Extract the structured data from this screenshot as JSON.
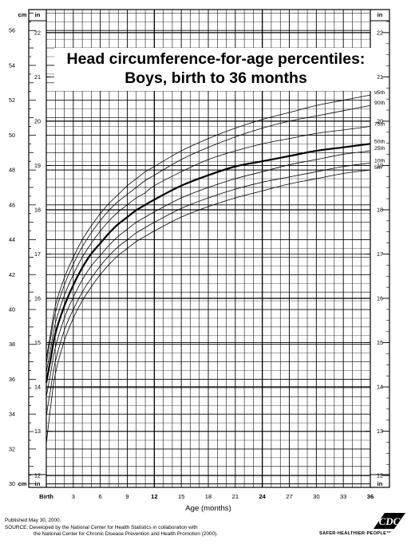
{
  "chart_data": {
    "type": "line",
    "title": "Head circumference-for-age percentiles:",
    "subtitle": "Boys, birth to 36 months",
    "xlabel": "Age (months)",
    "x_ticks": [
      "Birth",
      "3",
      "6",
      "9",
      "12",
      "15",
      "18",
      "21",
      "24",
      "27",
      "30",
      "33",
      "36"
    ],
    "x_bold_ticks": [
      "Birth",
      "12",
      "24",
      "36"
    ],
    "xlim": [
      0,
      36
    ],
    "cm_unit_label": "cm",
    "in_unit_label": "in",
    "cm_ticks": [
      "30",
      "32",
      "34",
      "36",
      "38",
      "40",
      "42",
      "44",
      "46",
      "48",
      "50",
      "52",
      "54",
      "56"
    ],
    "in_ticks": [
      "12",
      "13",
      "14",
      "15",
      "16",
      "17",
      "18",
      "19",
      "20",
      "21",
      "22"
    ],
    "ylim_cm": [
      29.8,
      57.2
    ],
    "grid": true,
    "x": [
      0,
      0.5,
      1,
      2,
      3,
      4,
      5,
      6,
      7,
      8,
      9,
      10,
      11,
      12,
      15,
      18,
      21,
      24,
      27,
      30,
      33,
      36
    ],
    "series": [
      {
        "name": "95th",
        "values": [
          37.2,
          38.7,
          40.2,
          41.8,
          43.0,
          44.0,
          44.8,
          45.5,
          46.1,
          46.6,
          47.1,
          47.5,
          47.9,
          48.2,
          49.1,
          49.8,
          50.4,
          50.9,
          51.3,
          51.7,
          52.0,
          52.3
        ]
      },
      {
        "name": "90th",
        "values": [
          36.9,
          38.4,
          39.8,
          41.4,
          42.6,
          43.6,
          44.4,
          45.1,
          45.7,
          46.2,
          46.6,
          47.0,
          47.4,
          47.7,
          48.6,
          49.3,
          49.9,
          50.4,
          50.8,
          51.1,
          51.4,
          51.7
        ]
      },
      {
        "name": "75th",
        "values": [
          36.4,
          37.8,
          39.2,
          40.8,
          42.0,
          43.0,
          43.8,
          44.5,
          45.1,
          45.6,
          46.0,
          46.4,
          46.7,
          47.1,
          47.9,
          48.6,
          49.1,
          49.5,
          49.8,
          50.1,
          50.3,
          50.5
        ]
      },
      {
        "name": "50th",
        "values": [
          35.8,
          37.2,
          38.6,
          40.2,
          41.4,
          42.4,
          43.2,
          43.8,
          44.4,
          44.9,
          45.3,
          45.7,
          46.0,
          46.3,
          47.1,
          47.7,
          48.2,
          48.5,
          48.8,
          49.1,
          49.3,
          49.5
        ]
      },
      {
        "name": "25th",
        "values": [
          35.0,
          36.4,
          37.8,
          39.5,
          40.7,
          41.7,
          42.5,
          43.1,
          43.7,
          44.2,
          44.6,
          45.0,
          45.3,
          45.6,
          46.4,
          47.0,
          47.5,
          47.9,
          48.3,
          48.6,
          48.9,
          49.1
        ]
      },
      {
        "name": "10th",
        "values": [
          33.9,
          35.5,
          37.0,
          38.8,
          40.0,
          41.0,
          41.8,
          42.5,
          43.1,
          43.6,
          44.0,
          44.4,
          44.7,
          45.0,
          45.8,
          46.4,
          46.9,
          47.3,
          47.6,
          47.9,
          48.2,
          48.4
        ]
      },
      {
        "name": "5th",
        "values": [
          32.3,
          34.5,
          36.3,
          38.2,
          39.5,
          40.5,
          41.3,
          42.0,
          42.6,
          43.1,
          43.5,
          43.9,
          44.2,
          44.5,
          45.3,
          45.9,
          46.4,
          46.8,
          47.2,
          47.5,
          47.8,
          48.0
        ]
      }
    ],
    "emphasized_series": "50th"
  },
  "footer": {
    "published": "Published May 30, 2000.",
    "source_line1": "SOURCE: Developed by the National Center for Health Statistics in collaboration with",
    "source_line2": "the National Center for Chronic Disease Prevention and Health Promotion (2000).",
    "tagline": "SAFER·HEALTHIER·PEOPLE™",
    "logo_text": "CDC"
  }
}
